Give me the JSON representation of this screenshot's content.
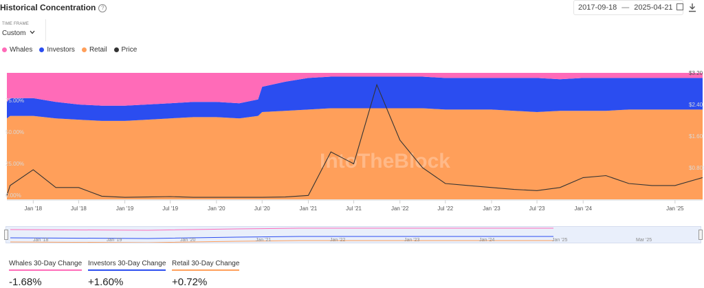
{
  "header": {
    "title": "Historical Concentration",
    "help_icon": "?",
    "date_start": "2017-09-18",
    "date_sep": "—",
    "date_end": "2025-04-21",
    "calendar_icon": "calendar-icon",
    "download_icon": "download-icon"
  },
  "timeframe": {
    "label": "TIME FRAME",
    "value": "Custom"
  },
  "legend": [
    {
      "name": "Whales",
      "color": "#ff6bb8"
    },
    {
      "name": "Investors",
      "color": "#2b4df0"
    },
    {
      "name": "Retail",
      "color": "#ff9f5a"
    },
    {
      "name": "Price",
      "color": "#333333"
    }
  ],
  "watermark": "IntoTheBlock",
  "chart_data": {
    "type": "area",
    "x_tick_labels": [
      "Jan '18",
      "Jul '18",
      "Jan '19",
      "Jul '19",
      "Jan '20",
      "Jul '20",
      "Jan '21",
      "Jul '21",
      "Jan '22",
      "Jul '22",
      "Jan '23",
      "Jul '23",
      "Jan '24",
      "Jan '25"
    ],
    "left_axis_labels": [
      "0.00%",
      "25.00%",
      "50.00%",
      "75.00%"
    ],
    "right_axis_labels": [
      "$0.800",
      "$1.60",
      "$2.40",
      "$3.20"
    ],
    "y_left_range": [
      0,
      100
    ],
    "y_right_range": [
      0,
      3.2
    ],
    "stacked": true,
    "x": [
      "2017-09-18",
      "2017-10-01",
      "2018-01-01",
      "2018-04-01",
      "2018-07-01",
      "2018-10-01",
      "2019-01-01",
      "2019-04-01",
      "2019-07-01",
      "2019-10-01",
      "2020-01-01",
      "2020-04-01",
      "2020-06-15",
      "2020-07-01",
      "2020-10-01",
      "2021-01-01",
      "2021-04-01",
      "2021-07-01",
      "2021-10-01",
      "2022-01-01",
      "2022-04-01",
      "2022-07-01",
      "2022-10-01",
      "2023-01-01",
      "2023-04-01",
      "2023-07-01",
      "2023-10-01",
      "2024-01-01",
      "2024-04-01",
      "2024-07-01",
      "2024-10-01",
      "2025-01-01",
      "2025-04-21"
    ],
    "series": [
      {
        "name": "Retail",
        "values": [
          64,
          66,
          66,
          64,
          63,
          62,
          62,
          63,
          64,
          65,
          65,
          64,
          66,
          69,
          70,
          71,
          72,
          72,
          72,
          72,
          72,
          71,
          71,
          71,
          70,
          69,
          70,
          70,
          70,
          71,
          71,
          71,
          71
        ]
      },
      {
        "name": "Investors",
        "values": [
          13,
          14,
          14,
          13,
          12,
          12,
          12,
          12,
          12,
          12,
          12,
          12,
          13,
          20,
          23,
          25,
          25,
          25,
          25,
          25,
          25,
          25,
          25,
          25,
          26,
          27,
          25,
          26,
          26,
          25,
          25,
          25,
          25
        ]
      },
      {
        "name": "Whales",
        "values": [
          23,
          20,
          20,
          23,
          25,
          26,
          26,
          25,
          24,
          23,
          23,
          24,
          21,
          11,
          7,
          4,
          3,
          3,
          3,
          3,
          3,
          4,
          4,
          4,
          4,
          4,
          5,
          4,
          4,
          4,
          4,
          4,
          4
        ]
      },
      {
        "name": "Price",
        "axis": "right",
        "values": [
          0.1,
          0.35,
          0.75,
          0.3,
          0.3,
          0.08,
          0.05,
          0.06,
          0.07,
          0.05,
          0.05,
          0.05,
          0.05,
          0.05,
          0.06,
          0.1,
          1.2,
          0.9,
          2.9,
          1.5,
          0.8,
          0.4,
          0.35,
          0.3,
          0.25,
          0.22,
          0.3,
          0.55,
          0.6,
          0.4,
          0.35,
          0.35,
          0.55
        ]
      }
    ]
  },
  "navigator": {
    "labels": [
      "Jan '18",
      "Jan '19",
      "Jan '20",
      "Jan '21",
      "Jan '22",
      "Jan '23",
      "Jan '24",
      "Jan '25",
      "Mar '25"
    ]
  },
  "stats": [
    {
      "label": "Whales 30-Day Change",
      "value": "-1.68%",
      "color": "#ff6bb8"
    },
    {
      "label": "Investors 30-Day Change",
      "value": "+1.60%",
      "color": "#2b4df0"
    },
    {
      "label": "Retail 30-Day Change",
      "value": "+0.72%",
      "color": "#ff9f5a"
    }
  ]
}
